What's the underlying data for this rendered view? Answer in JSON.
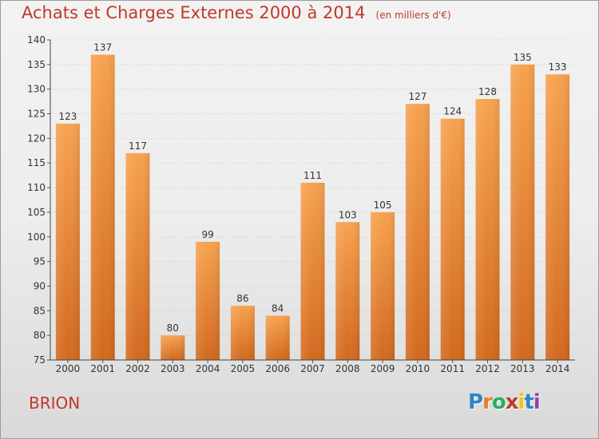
{
  "title": "Achats et Charges Externes 2000 à 2014",
  "subtitle": "(en milliers d'€)",
  "commune": "BRION",
  "logo": {
    "letters": [
      "P",
      "r",
      "o",
      "x",
      "i",
      "t",
      "i"
    ],
    "colors": [
      "#2e86c1",
      "#e67e22",
      "#27ae60",
      "#c0392b",
      "#f1c40f",
      "#2e86c1",
      "#8e44ad"
    ]
  },
  "chart_data": {
    "type": "bar",
    "categories": [
      "2000",
      "2001",
      "2002",
      "2003",
      "2004",
      "2005",
      "2006",
      "2007",
      "2008",
      "2009",
      "2010",
      "2011",
      "2012",
      "2013",
      "2014"
    ],
    "values": [
      123,
      137,
      117,
      80,
      99,
      86,
      84,
      111,
      103,
      105,
      127,
      124,
      128,
      135,
      133
    ],
    "ylim": [
      75,
      140
    ],
    "yticks": [
      75,
      80,
      85,
      90,
      95,
      100,
      105,
      110,
      115,
      120,
      125,
      130,
      135,
      140
    ],
    "grid": true,
    "bar_color_top": "#f7a24f",
    "bar_color_bottom": "#d2691e"
  }
}
